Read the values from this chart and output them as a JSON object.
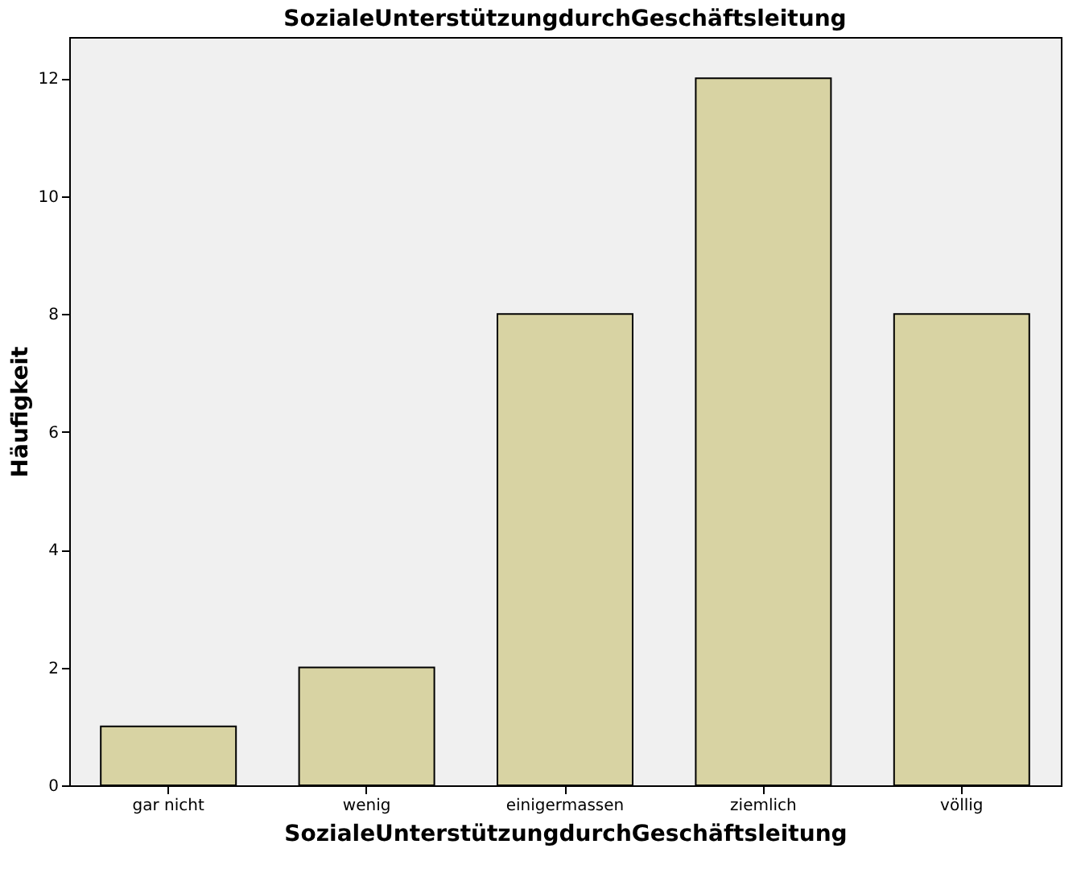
{
  "chart_data": {
    "type": "bar",
    "title": "SozialeUnterstützungdurchGeschäftsleitung",
    "xlabel": "SozialeUnterstützungdurchGeschäftsleitung",
    "ylabel": "Häufigkeit",
    "categories": [
      "gar nicht",
      "wenig",
      "einigermassen",
      "ziemlich",
      "völlig"
    ],
    "values": [
      1,
      2,
      8,
      12,
      8
    ],
    "color": "#d8d3a3",
    "ylim": [
      0,
      12.7
    ],
    "yticks": [
      0,
      2,
      4,
      6,
      8,
      10,
      12
    ],
    "grid": false
  }
}
